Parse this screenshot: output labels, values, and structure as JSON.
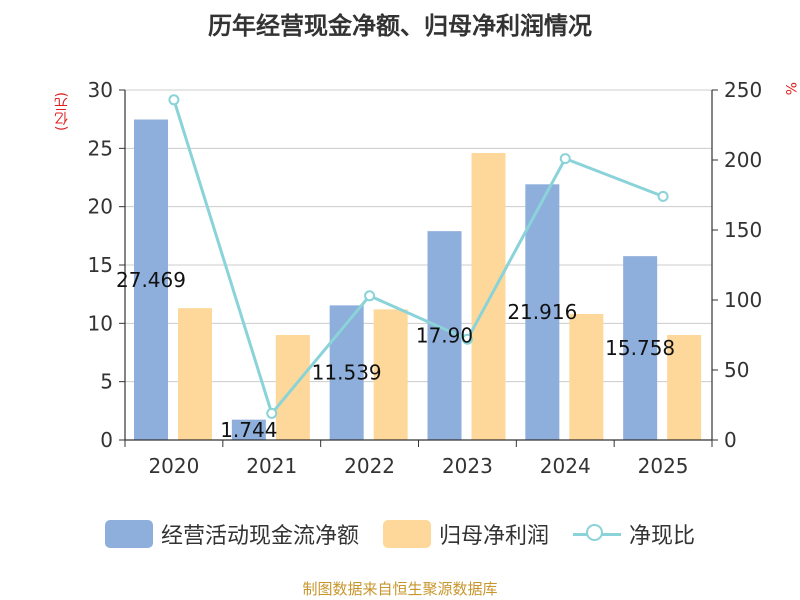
{
  "chart_data": {
    "type": "bar+line",
    "title": "历年经营现金净额、归母净利润情况",
    "categories": [
      "2020",
      "2021",
      "2022",
      "2023",
      "2024",
      "2025"
    ],
    "series": [
      {
        "name": "经营活动现金流净额",
        "type": "bar",
        "axis": "left",
        "values": [
          27.469,
          1.744,
          11.539,
          17.9,
          21.916,
          15.758
        ],
        "labels": [
          "27.469",
          "1.744",
          "11.539",
          "17.90",
          "21.916",
          "15.758"
        ],
        "color": "#8eaedc"
      },
      {
        "name": "归母净利润",
        "type": "bar",
        "axis": "left",
        "values": [
          11.3,
          9.0,
          11.2,
          24.6,
          10.8,
          9.0
        ],
        "color": "#fdd89a"
      },
      {
        "name": "净现比",
        "type": "line",
        "axis": "right",
        "values": [
          243,
          19,
          103,
          72,
          201,
          174
        ],
        "color": "#8ad3d8"
      }
    ],
    "ylabel_left": "(亿元)",
    "ylabel_right": "%",
    "ylim_left": [
      0,
      30
    ],
    "ylim_right": [
      0,
      250
    ],
    "yticks_left": [
      "0",
      "5",
      "10",
      "15",
      "20",
      "25",
      "30"
    ],
    "yticks_right": [
      "0",
      "50",
      "100",
      "150",
      "200",
      "250"
    ],
    "grid": true,
    "legend_position": "bottom"
  },
  "source": "制图数据来自恒生聚源数据库"
}
